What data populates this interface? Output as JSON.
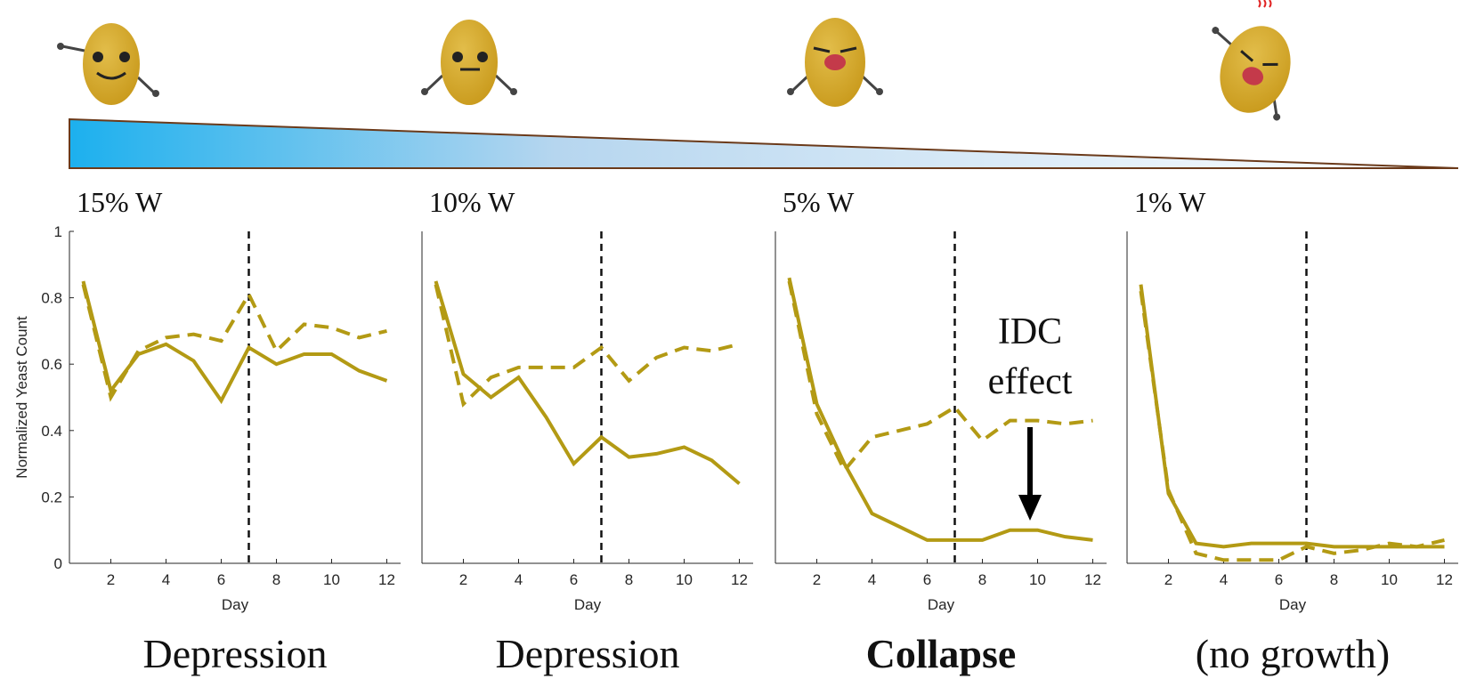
{
  "chart_data": [
    {
      "type": "line",
      "title": "15% W",
      "caption": "Depression",
      "caption_bold": false,
      "ylabel": "Normalized Yeast Count",
      "xlabel": "Day",
      "x": [
        1,
        2,
        3,
        4,
        5,
        6,
        7,
        8,
        9,
        10,
        11,
        12
      ],
      "xlim": [
        0.5,
        12.5
      ],
      "xticks": [
        2,
        4,
        6,
        8,
        10,
        12
      ],
      "ylim": [
        0,
        1
      ],
      "yticks": [
        0,
        0.2,
        0.4,
        0.6,
        0.8,
        1
      ],
      "vline": 7,
      "series": [
        {
          "style": "solid",
          "color": "#b39a14",
          "values": [
            0.85,
            0.52,
            0.63,
            0.66,
            0.61,
            0.49,
            0.65,
            0.6,
            0.63,
            0.63,
            0.58,
            0.55
          ]
        },
        {
          "style": "dashed",
          "color": "#b39a14",
          "values": [
            0.84,
            0.5,
            0.64,
            0.68,
            0.69,
            0.67,
            0.81,
            0.64,
            0.72,
            0.71,
            0.68,
            0.7
          ]
        }
      ]
    },
    {
      "type": "line",
      "title": "10% W",
      "caption": "Depression",
      "caption_bold": false,
      "xlabel": "Day",
      "x": [
        1,
        2,
        3,
        4,
        5,
        6,
        7,
        8,
        9,
        10,
        11,
        12
      ],
      "xlim": [
        0.5,
        12.5
      ],
      "xticks": [
        2,
        4,
        6,
        8,
        10,
        12
      ],
      "ylim": [
        0,
        1
      ],
      "vline": 7,
      "series": [
        {
          "style": "solid",
          "color": "#b39a14",
          "values": [
            0.85,
            0.57,
            0.5,
            0.56,
            0.44,
            0.3,
            0.38,
            0.32,
            0.33,
            0.35,
            0.31,
            0.24
          ]
        },
        {
          "style": "dashed",
          "color": "#b39a14",
          "values": [
            0.84,
            0.48,
            0.56,
            0.59,
            0.59,
            0.59,
            0.65,
            0.55,
            0.62,
            0.65,
            0.64,
            0.66
          ]
        }
      ]
    },
    {
      "type": "line",
      "title": "5% W",
      "caption": "Collapse",
      "caption_bold": true,
      "xlabel": "Day",
      "annotation": [
        "IDC",
        "effect"
      ],
      "x": [
        1,
        2,
        3,
        4,
        5,
        6,
        7,
        8,
        9,
        10,
        11,
        12
      ],
      "xlim": [
        0.5,
        12.5
      ],
      "xticks": [
        2,
        4,
        6,
        8,
        10,
        12
      ],
      "ylim": [
        0,
        1
      ],
      "vline": 7,
      "series": [
        {
          "style": "solid",
          "color": "#b39a14",
          "values": [
            0.86,
            0.48,
            0.3,
            0.15,
            0.11,
            0.07,
            0.07,
            0.07,
            0.1,
            0.1,
            0.08,
            0.07
          ]
        },
        {
          "style": "dashed",
          "color": "#b39a14",
          "values": [
            0.85,
            0.45,
            0.28,
            0.38,
            0.4,
            0.42,
            0.47,
            0.37,
            0.43,
            0.43,
            0.42,
            0.43
          ]
        }
      ]
    },
    {
      "type": "line",
      "title": "1% W",
      "caption": "(no growth)",
      "caption_bold": false,
      "xlabel": "Day",
      "x": [
        1,
        2,
        3,
        4,
        5,
        6,
        7,
        8,
        9,
        10,
        11,
        12
      ],
      "xlim": [
        0.5,
        12.5
      ],
      "xticks": [
        2,
        4,
        6,
        8,
        10,
        12
      ],
      "ylim": [
        0,
        1
      ],
      "vline": 7,
      "series": [
        {
          "style": "solid",
          "color": "#b39a14",
          "values": [
            0.84,
            0.21,
            0.06,
            0.05,
            0.06,
            0.06,
            0.06,
            0.05,
            0.05,
            0.05,
            0.05,
            0.05
          ]
        },
        {
          "style": "dashed",
          "color": "#b39a14",
          "values": [
            0.82,
            0.22,
            0.03,
            0.01,
            0.01,
            0.01,
            0.05,
            0.03,
            0.04,
            0.06,
            0.05,
            0.07
          ]
        }
      ]
    }
  ]
}
